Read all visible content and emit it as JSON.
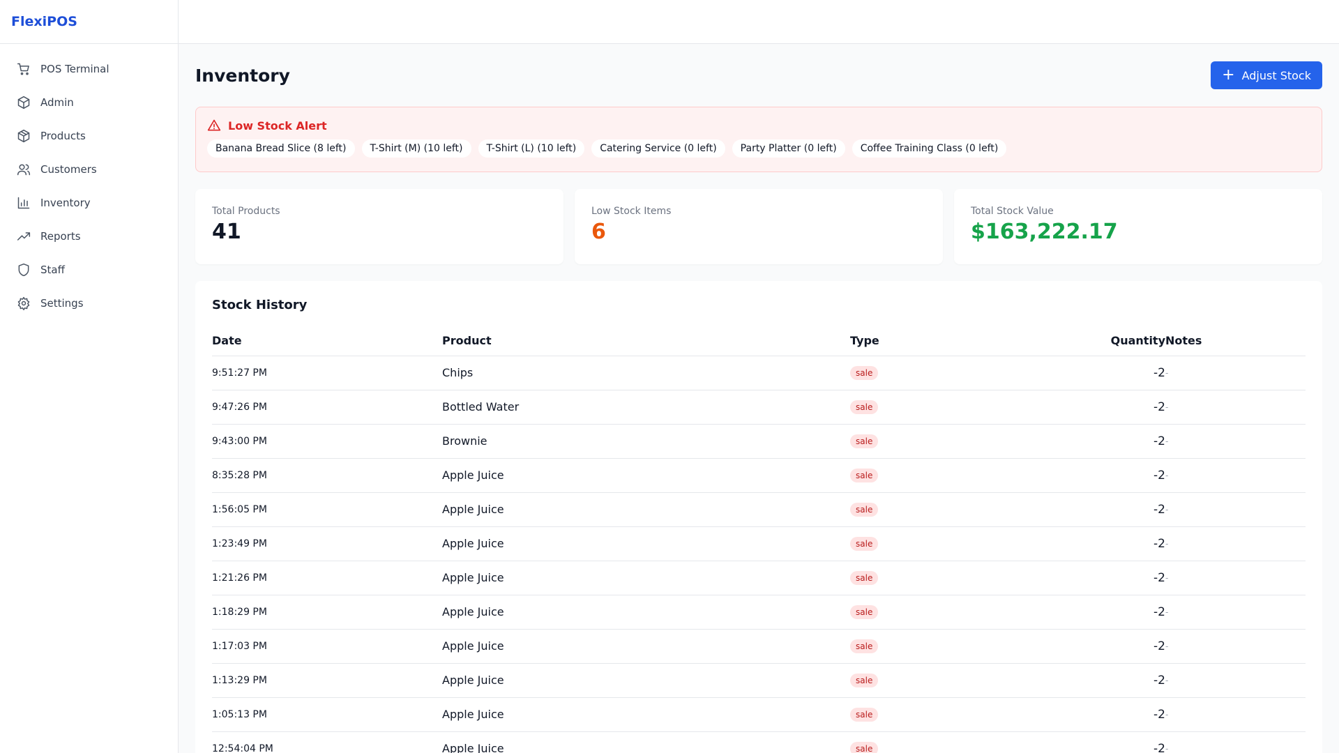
{
  "app": {
    "name": "FlexiPOS"
  },
  "sidebar": {
    "items": [
      {
        "label": "POS Terminal",
        "icon": "cart-icon"
      },
      {
        "label": "Admin",
        "icon": "box-icon"
      },
      {
        "label": "Products",
        "icon": "package-icon"
      },
      {
        "label": "Customers",
        "icon": "users-icon"
      },
      {
        "label": "Inventory",
        "icon": "bar-chart-icon"
      },
      {
        "label": "Reports",
        "icon": "trending-up-icon"
      },
      {
        "label": "Staff",
        "icon": "shield-icon"
      },
      {
        "label": "Settings",
        "icon": "gear-icon"
      }
    ]
  },
  "page": {
    "title": "Inventory",
    "adjust_label": "Adjust Stock"
  },
  "alert": {
    "title": "Low Stock Alert",
    "items": [
      "Banana Bread Slice (8 left)",
      "T-Shirt (M) (10 left)",
      "T-Shirt (L) (10 left)",
      "Catering Service (0 left)",
      "Party Platter (0 left)",
      "Coffee Training Class (0 left)"
    ]
  },
  "stats": {
    "total_products": {
      "label": "Total Products",
      "value": "41",
      "color": "#111827"
    },
    "low_stock": {
      "label": "Low Stock Items",
      "value": "6",
      "color": "#ea580c"
    },
    "stock_value": {
      "label": "Total Stock Value",
      "value": "$163,222.17",
      "color": "#16a34a"
    }
  },
  "history": {
    "title": "Stock History",
    "columns": {
      "date": "Date",
      "product": "Product",
      "type": "Type",
      "quantity": "Quantity",
      "notes": "Notes"
    },
    "rows": [
      {
        "date": "9:51:27 PM",
        "product": "Chips",
        "type": "sale",
        "quantity": "-2",
        "notes": "-"
      },
      {
        "date": "9:47:26 PM",
        "product": "Bottled Water",
        "type": "sale",
        "quantity": "-2",
        "notes": "-"
      },
      {
        "date": "9:43:00 PM",
        "product": "Brownie",
        "type": "sale",
        "quantity": "-2",
        "notes": "-"
      },
      {
        "date": "8:35:28 PM",
        "product": "Apple Juice",
        "type": "sale",
        "quantity": "-2",
        "notes": "-"
      },
      {
        "date": "1:56:05 PM",
        "product": "Apple Juice",
        "type": "sale",
        "quantity": "-2",
        "notes": "-"
      },
      {
        "date": "1:23:49 PM",
        "product": "Apple Juice",
        "type": "sale",
        "quantity": "-2",
        "notes": "-"
      },
      {
        "date": "1:21:26 PM",
        "product": "Apple Juice",
        "type": "sale",
        "quantity": "-2",
        "notes": "-"
      },
      {
        "date": "1:18:29 PM",
        "product": "Apple Juice",
        "type": "sale",
        "quantity": "-2",
        "notes": "-"
      },
      {
        "date": "1:17:03 PM",
        "product": "Apple Juice",
        "type": "sale",
        "quantity": "-2",
        "notes": "-"
      },
      {
        "date": "1:13:29 PM",
        "product": "Apple Juice",
        "type": "sale",
        "quantity": "-2",
        "notes": "-"
      },
      {
        "date": "1:05:13 PM",
        "product": "Apple Juice",
        "type": "sale",
        "quantity": "-2",
        "notes": "-"
      },
      {
        "date": "12:54:04 PM",
        "product": "Apple Juice",
        "type": "sale",
        "quantity": "-2",
        "notes": "-"
      }
    ]
  }
}
